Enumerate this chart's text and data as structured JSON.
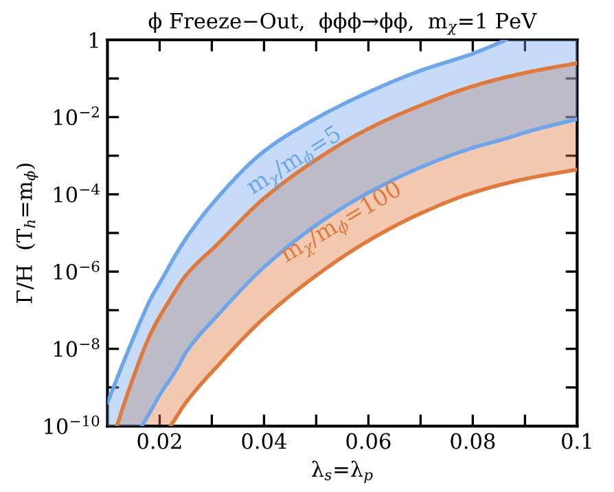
{
  "chart_data": {
    "type": "line",
    "title": "ϕ Freeze−Out,  ϕϕϕ→ϕϕ,  m$_{χ}$=1 PeV",
    "xlabel": "λ$_{s}$=λ$_{p}$",
    "ylabel": "Γ/H  (T$_{h}$=m$_{ϕ}$)",
    "log": "y",
    "xlim": [
      0.01,
      0.1
    ],
    "ylim": [
      1e-10,
      1
    ],
    "xticks": [
      0.02,
      {
        "value": 0.03,
        "label": null
      },
      0.04,
      {
        "value": 0.05,
        "label": null
      },
      0.06,
      {
        "value": 0.07,
        "label": null
      },
      0.08,
      {
        "value": 0.09,
        "label": null
      },
      0.1
    ],
    "yticks": [
      {
        "value": 1e-10,
        "label": "10$^{−10}$"
      },
      {
        "value": 1e-09,
        "label": null
      },
      {
        "value": 1e-08,
        "label": "10$^{−8}$"
      },
      {
        "value": 1e-07,
        "label": null
      },
      {
        "value": 1e-06,
        "label": "10$^{−6}$"
      },
      {
        "value": 1e-05,
        "label": null
      },
      {
        "value": 0.0001,
        "label": "10$^{−4}$"
      },
      {
        "value": 0.001,
        "label": null
      },
      {
        "value": 0.01,
        "label": "10$^{−2}$"
      },
      {
        "value": 0.1,
        "label": null
      },
      1
    ],
    "grid": false,
    "legend": false,
    "series": [
      {
        "name": "m$_{χ}$/m$_{ϕ}$=5",
        "color": "#6ea6ec",
        "x": [
          0.01,
          0.0132,
          0.0166,
          0.0183,
          0.02,
          0.0234,
          0.025,
          0.031,
          0.04,
          0.05,
          0.06,
          0.07,
          0.08,
          0.0864,
          0.09,
          0.1
        ],
        "values": [
          4e-10,
          5e-09,
          6.3e-08,
          2e-07,
          5e-07,
          3.2e-06,
          7.1e-06,
          7.9e-05,
          0.0013,
          0.0093,
          0.044,
          0.16,
          0.44,
          1,
          null,
          null
        ],
        "upper": [
          4e-10,
          5e-09,
          6.3e-08,
          2e-07,
          5e-07,
          3.2e-06,
          7.1e-06,
          7.9e-05,
          0.0013,
          0.0093,
          0.044,
          0.16,
          0.44,
          1,
          1,
          1
        ],
        "lower": [
          1e-10,
          1e-10,
          1e-10,
          2.5e-10,
          6.3e-10,
          3.2e-09,
          7.9e-09,
          7.1e-08,
          1.3e-06,
          1.6e-05,
          0.00011,
          0.0005,
          0.0016,
          0.0028,
          0.004,
          0.0089
        ]
      },
      {
        "color": "#6ea6ec",
        "x": [
          0.0166,
          0.0183,
          0.02,
          0.0234,
          0.025,
          0.031,
          0.04,
          0.05,
          0.06,
          0.07,
          0.08,
          0.0864,
          0.09,
          0.1
        ],
        "values": [
          1e-10,
          2.5e-10,
          6.3e-10,
          3.2e-09,
          7.9e-09,
          7.1e-08,
          1.3e-06,
          1.6e-05,
          0.00011,
          0.0005,
          0.0016,
          0.0028,
          0.004,
          0.0089
        ]
      },
      {
        "name": "m$_{χ}$/m$_{ϕ}$=100",
        "color": "#e07a3c",
        "x": [
          0.0118,
          0.014,
          0.0183,
          0.0221,
          0.025,
          0.031,
          0.04,
          0.05,
          0.06,
          0.07,
          0.08,
          0.09,
          0.1
        ],
        "values": [
          1e-10,
          7.9e-10,
          2.5e-08,
          2e-07,
          7.9e-07,
          5e-06,
          7.9e-05,
          0.00079,
          0.005,
          0.02,
          0.063,
          0.14,
          0.25
        ],
        "upper": [
          1e-10,
          7.9e-10,
          2.5e-08,
          2e-07,
          7.9e-07,
          5e-06,
          7.9e-05,
          0.00079,
          0.005,
          0.02,
          0.063,
          0.14,
          0.25
        ],
        "lower": [
          1e-10,
          1e-10,
          1e-10,
          1e-10,
          4e-10,
          3.5e-09,
          6.3e-08,
          7.9e-07,
          6.3e-06,
          3.2e-05,
          0.00011,
          0.00025,
          0.00044
        ]
      },
      {
        "color": "#e07a3c",
        "x": [
          0.0221,
          0.025,
          0.031,
          0.04,
          0.05,
          0.06,
          0.07,
          0.08,
          0.09,
          0.1
        ],
        "values": [
          1e-10,
          4e-10,
          3.5e-09,
          6.3e-08,
          7.9e-07,
          6.3e-06,
          3.2e-05,
          0.00011,
          0.00025,
          0.00044
        ]
      }
    ]
  }
}
